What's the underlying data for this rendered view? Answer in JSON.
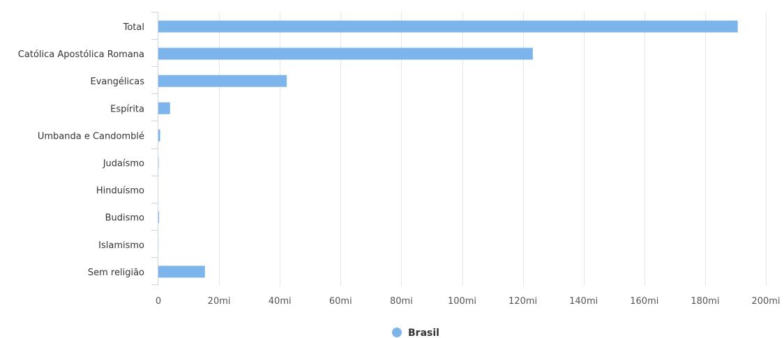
{
  "chart_data": {
    "type": "bar",
    "orientation": "horizontal",
    "categories": [
      "Total",
      "Católica Apostólica Romana",
      "Evangélicas",
      "Espírita",
      "Umbanda e Candomblé",
      "Judaísmo",
      "Hinduísmo",
      "Budismo",
      "Islamismo",
      "Sem religião"
    ],
    "series": [
      {
        "name": "Brasil",
        "color": "#7cb5ec",
        "values": [
          190755799,
          123280172,
          42275440,
          3848876,
          588797,
          107329,
          5675,
          243966,
          35167,
          15335510
        ]
      }
    ],
    "xlim": [
      0,
      200000000
    ],
    "xticks": [
      0,
      20000000,
      40000000,
      60000000,
      80000000,
      100000000,
      120000000,
      140000000,
      160000000,
      180000000,
      200000000
    ],
    "xtick_labels": [
      "0",
      "20mi",
      "40mi",
      "60mi",
      "80mi",
      "100mi",
      "120mi",
      "140mi",
      "160mi",
      "180mi",
      "200mi"
    ],
    "grid": true,
    "legend_position": "bottom-center"
  }
}
